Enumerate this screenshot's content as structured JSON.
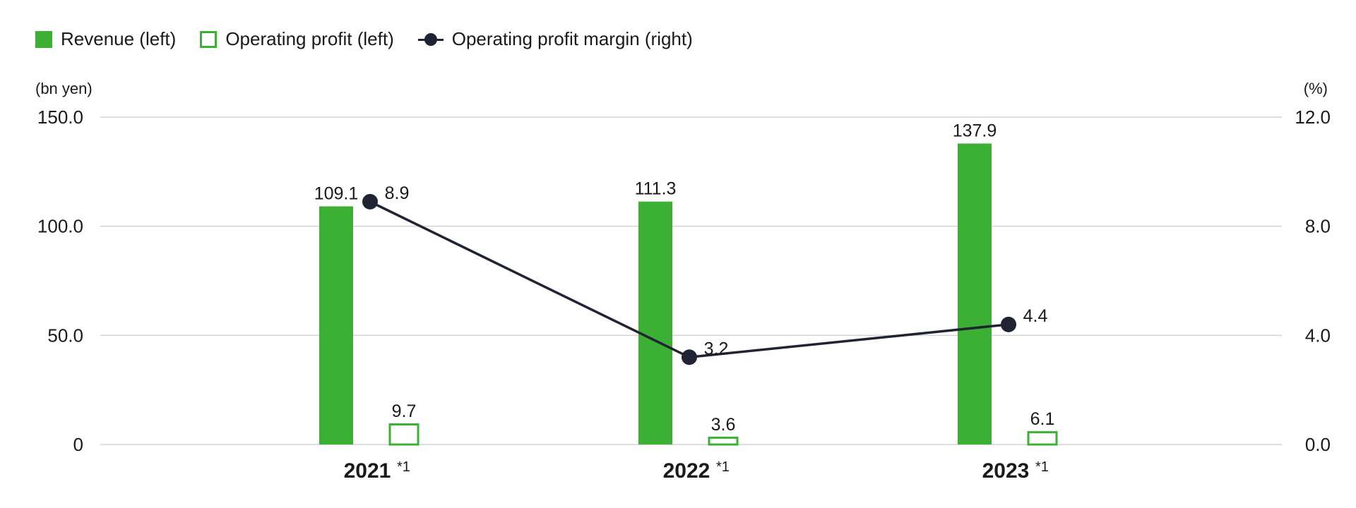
{
  "legend": {
    "revenue": "Revenue (left)",
    "operating_profit": "Operating profit (left)",
    "margin": "Operating profit margin (right)"
  },
  "colors": {
    "bar": "#3cb034",
    "line": "#1f2332",
    "grid": "#d3d3d3"
  },
  "chart_data": {
    "type": "bar",
    "categories": [
      "2021",
      "2022",
      "2023"
    ],
    "category_note": "*1",
    "left_axis": {
      "unit": "(bn yen)",
      "ylim": [
        0,
        150
      ],
      "ticks": [
        "0",
        "50.0",
        "100.0",
        "150.0"
      ],
      "tick_values": [
        0,
        50,
        100,
        150
      ]
    },
    "right_axis": {
      "unit": "(%)",
      "ylim": [
        0,
        12
      ],
      "ticks": [
        "0.0",
        "4.0",
        "8.0",
        "12.0"
      ],
      "tick_values": [
        0,
        4,
        8,
        12
      ]
    },
    "series": [
      {
        "name": "Revenue (left)",
        "kind": "bar-filled",
        "axis": "left",
        "values": [
          109.1,
          111.3,
          137.9
        ],
        "labels": [
          "109.1",
          "111.3",
          "137.9"
        ]
      },
      {
        "name": "Operating profit (left)",
        "kind": "bar-outline",
        "axis": "left",
        "values": [
          9.7,
          3.6,
          6.1
        ],
        "labels": [
          "9.7",
          "3.6",
          "6.1"
        ]
      },
      {
        "name": "Operating profit margin (right)",
        "kind": "line",
        "axis": "right",
        "values": [
          8.9,
          3.2,
          4.4
        ],
        "labels": [
          "8.9",
          "3.2",
          "4.4"
        ]
      }
    ],
    "grid": true,
    "legend_position": "top-left"
  }
}
